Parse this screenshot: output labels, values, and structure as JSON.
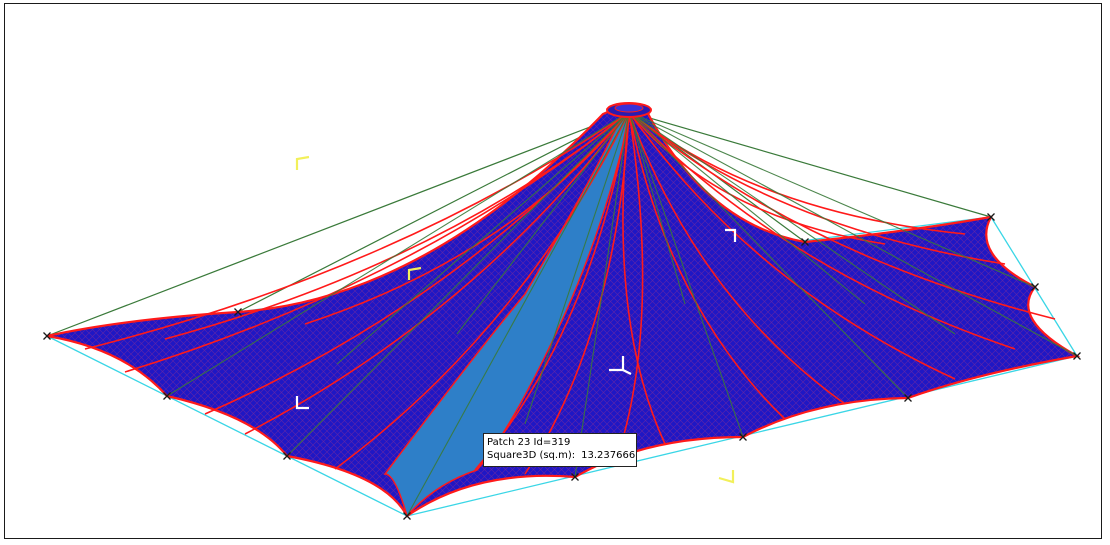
{
  "viewport": {
    "background": "#ffffff",
    "colors": {
      "membrane": "#1f17c4",
      "membrane_edge": "#ff1a1a",
      "selected_patch": "#2e7fc8",
      "cable": "#3a7a3a",
      "boundary": "#3ad6e6",
      "node": "#1a1a1a",
      "axis_marker": "#f2f05a"
    },
    "icons": [
      "axis-marker-icon",
      "node-marker-icon",
      "mast-top-icon"
    ]
  },
  "tooltip": {
    "line1": "Patch 23 Id=319",
    "line2_label": "Square3D (sq.m):",
    "line2_value": "13.237666"
  }
}
